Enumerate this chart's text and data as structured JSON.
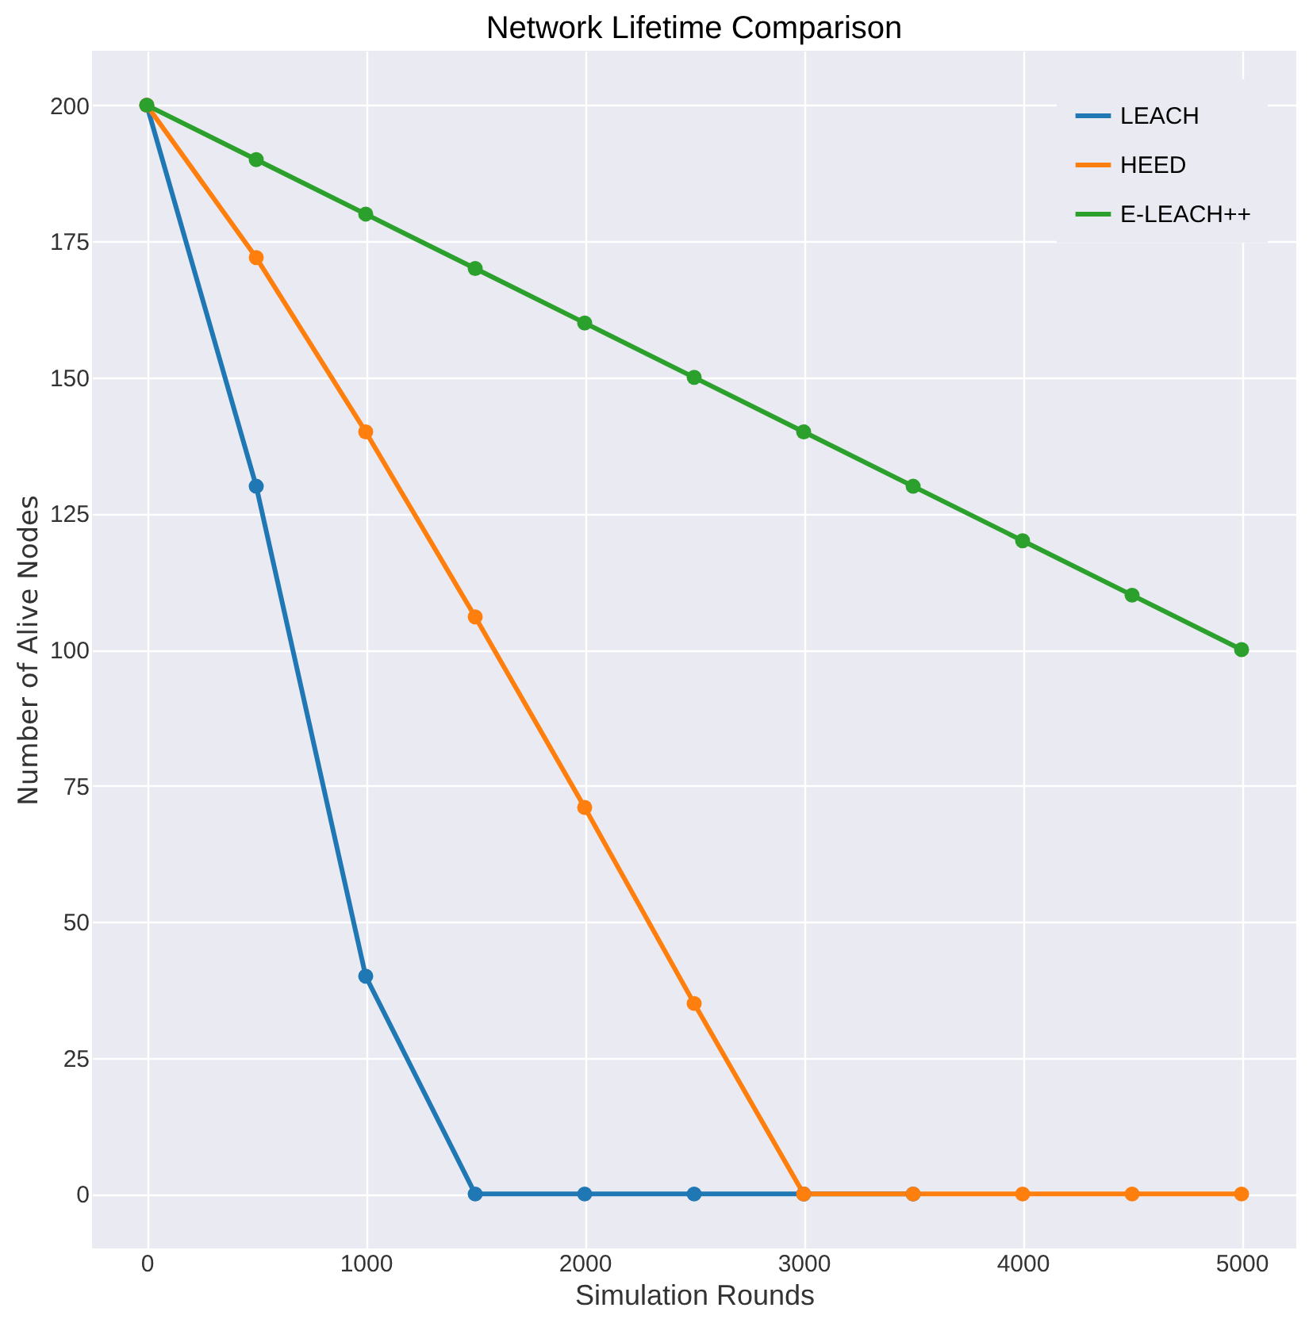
{
  "chart_data": {
    "type": "line",
    "title": "Network Lifetime Comparison",
    "xlabel": "Simulation Rounds",
    "ylabel": "Number of Alive Nodes",
    "x": [
      0,
      500,
      1000,
      1500,
      2000,
      2500,
      3000,
      3500,
      4000,
      4500,
      5000
    ],
    "series": [
      {
        "name": "LEACH",
        "color": "#1f77b4",
        "values": [
          200,
          130,
          40,
          0,
          0,
          0,
          0,
          0,
          null,
          null,
          null
        ]
      },
      {
        "name": "HEED",
        "color": "#ff7f0e",
        "values": [
          200,
          172,
          140,
          106,
          71,
          35,
          0,
          0,
          0,
          0,
          0
        ]
      },
      {
        "name": "E-LEACH++",
        "color": "#2ca02c",
        "values": [
          200,
          190,
          180,
          170,
          160,
          150,
          140,
          130,
          120,
          110,
          100
        ]
      }
    ],
    "xlim": [
      -250,
      5250
    ],
    "xticks": [
      0,
      1000,
      2000,
      3000,
      4000,
      5000
    ],
    "ylim": [
      -10,
      210
    ],
    "yticks": [
      0,
      25,
      50,
      75,
      100,
      125,
      150,
      175,
      200
    ],
    "grid": true,
    "legend": "top right",
    "marker": "circle",
    "line_style": "solid"
  }
}
